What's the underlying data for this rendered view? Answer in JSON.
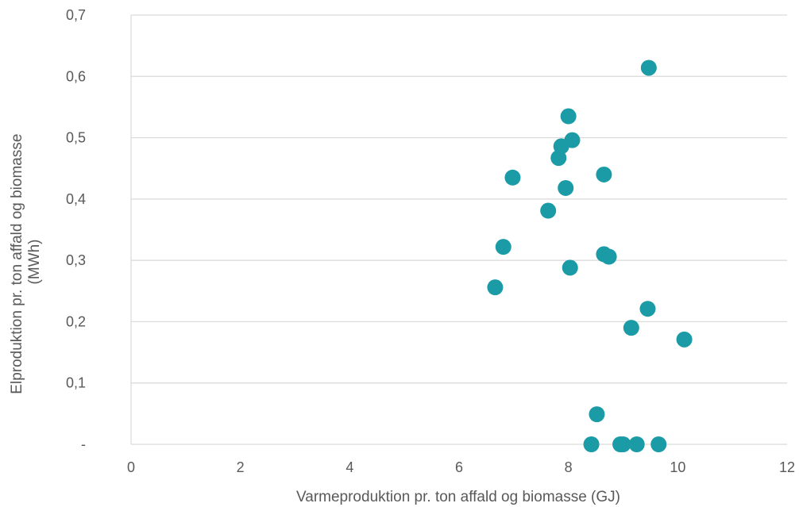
{
  "chart_data": {
    "type": "scatter",
    "title": "",
    "xlabel": "Varmeproduktion pr. ton affald og biomasse (GJ)",
    "ylabel_lines": [
      "Elproduktion pr. ton affald og biomasse",
      "(MWh)"
    ],
    "xlim": [
      0,
      12
    ],
    "ylim": [
      0,
      0.7
    ],
    "x_ticks": [
      0,
      2,
      4,
      6,
      8,
      10,
      12
    ],
    "x_tick_labels": [
      "0",
      "2",
      "4",
      "6",
      "8",
      "10",
      "12"
    ],
    "y_ticks": [
      0,
      0.1,
      0.2,
      0.3,
      0.4,
      0.5,
      0.6,
      0.7
    ],
    "y_tick_labels": [
      "-",
      "0,1",
      "0,2",
      "0,3",
      "0,4",
      "0,5",
      "0,6",
      "0,7"
    ],
    "grid": "horizontal",
    "marker_color": "#1a9ba6",
    "series": [
      {
        "points": [
          {
            "x": 9.47,
            "y": 0.614
          },
          {
            "x": 8.0,
            "y": 0.535
          },
          {
            "x": 8.07,
            "y": 0.496
          },
          {
            "x": 7.87,
            "y": 0.486
          },
          {
            "x": 7.82,
            "y": 0.467
          },
          {
            "x": 6.98,
            "y": 0.435
          },
          {
            "x": 8.65,
            "y": 0.44
          },
          {
            "x": 7.95,
            "y": 0.418
          },
          {
            "x": 7.63,
            "y": 0.381
          },
          {
            "x": 6.81,
            "y": 0.322
          },
          {
            "x": 8.65,
            "y": 0.31
          },
          {
            "x": 8.74,
            "y": 0.306
          },
          {
            "x": 8.03,
            "y": 0.288
          },
          {
            "x": 6.66,
            "y": 0.256
          },
          {
            "x": 9.45,
            "y": 0.221
          },
          {
            "x": 9.15,
            "y": 0.19
          },
          {
            "x": 10.12,
            "y": 0.171
          },
          {
            "x": 8.52,
            "y": 0.049
          },
          {
            "x": 8.42,
            "y": 0.0
          },
          {
            "x": 8.95,
            "y": 0.0
          },
          {
            "x": 9.0,
            "y": 0.0
          },
          {
            "x": 9.25,
            "y": 0.0
          },
          {
            "x": 9.65,
            "y": 0.0
          }
        ]
      }
    ]
  }
}
